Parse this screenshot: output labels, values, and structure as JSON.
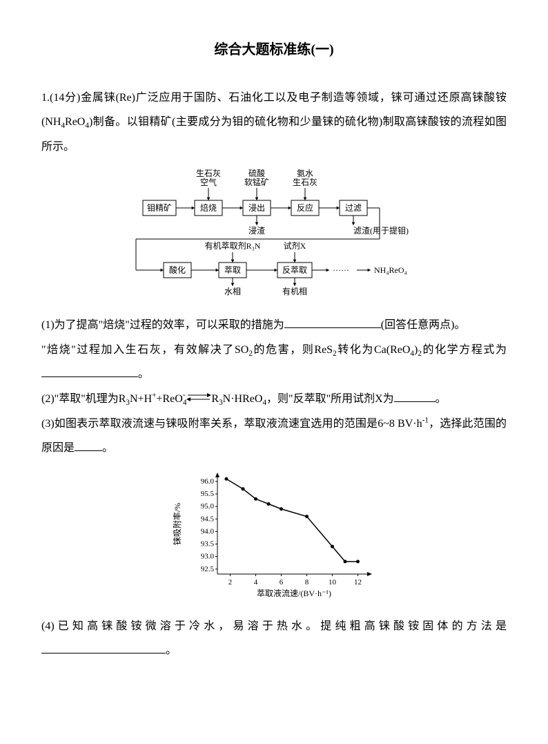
{
  "title": "综合大题标准练(一)",
  "q1": {
    "intro1": "1.(14分)金属铼(Re)广泛应用于国防、石油化工以及电子制造等领域，铼可通过还原高铼酸铵(NH",
    "intro2": "ReO",
    "intro3": ")制备。以钼精矿(主要成分为钼的硫化物和少量铼的硫化物)制取高铼酸铵的流程如图所示。",
    "part1a": "(1)为了提高\"焙烧\"过程的效率，可以采取的措施为",
    "part1b": "(回答任意两点)。",
    "part1c": "\"焙烧\"过程加入生石灰，有效解决了SO",
    "part1d": "的危害，则ReS",
    "part1e": "转化为Ca(ReO",
    "part1f": ")",
    "part1g": "的化学方程式为",
    "part1end": "。",
    "part2a": "(2)\"萃取\"机理为R",
    "part2b": "N+H",
    "part2c": "+ReO",
    "part2d": "R",
    "part2e": "N·HReO",
    "part2f": "，则\"反萃取\"所用试剂X为",
    "part2end": "。",
    "part3a": "(3)如图表示萃取液流速与铼吸附率关系，萃取液流速宜选用的范围是6~8 BV·h",
    "part3b": "，选择此范围的原因是",
    "part3end": "。",
    "part4a": "(4)已知高铼酸铵微溶于冷水，易溶于热水。提纯粗高铼酸铵固体的方法是",
    "part4end": "。"
  },
  "flowchart": {
    "top_labels": [
      "生石灰\n空气",
      "硫酸\n软锰矿",
      "氨水\n生石灰"
    ],
    "boxes_top": [
      "钼精矿",
      "焙烧",
      "浸出",
      "反应",
      "过滤"
    ],
    "under_top": [
      "浸渣",
      "滤渣(用于提钼)"
    ],
    "mid_labels": [
      "有机萃取剂R₃N",
      "试剂X"
    ],
    "boxes_bot": [
      "酸化",
      "萃取",
      "反萃取"
    ],
    "under_bot": [
      "水相",
      "有机相"
    ],
    "output": "NH₄ReO₄",
    "box_stroke": "#000000",
    "box_fill": "#ffffff",
    "font_size": 12,
    "arrow_color": "#000000"
  },
  "chart": {
    "type": "line",
    "x_label": "萃取液流速/(BV·h⁻¹)",
    "y_label": "铼吸附率/%",
    "x_ticks": [
      2,
      4,
      6,
      8,
      10,
      12
    ],
    "y_ticks": [
      92.5,
      93.0,
      93.5,
      94.0,
      94.5,
      95.0,
      95.5,
      96.0
    ],
    "x_range": [
      1,
      13
    ],
    "y_range": [
      92.3,
      96.3
    ],
    "points": [
      {
        "x": 1.7,
        "y": 96.1
      },
      {
        "x": 3,
        "y": 95.7
      },
      {
        "x": 4,
        "y": 95.3
      },
      {
        "x": 5,
        "y": 95.1
      },
      {
        "x": 6,
        "y": 94.9
      },
      {
        "x": 8,
        "y": 94.6
      },
      {
        "x": 10,
        "y": 93.4
      },
      {
        "x": 11,
        "y": 92.8
      },
      {
        "x": 12,
        "y": 92.8
      }
    ],
    "line_color": "#000000",
    "marker_fill": "#000000",
    "axis_color": "#000000",
    "grid_color": "#cccccc",
    "font_size": 11,
    "label_font_size": 12,
    "marker_size": 2.5,
    "line_width": 1.5
  }
}
